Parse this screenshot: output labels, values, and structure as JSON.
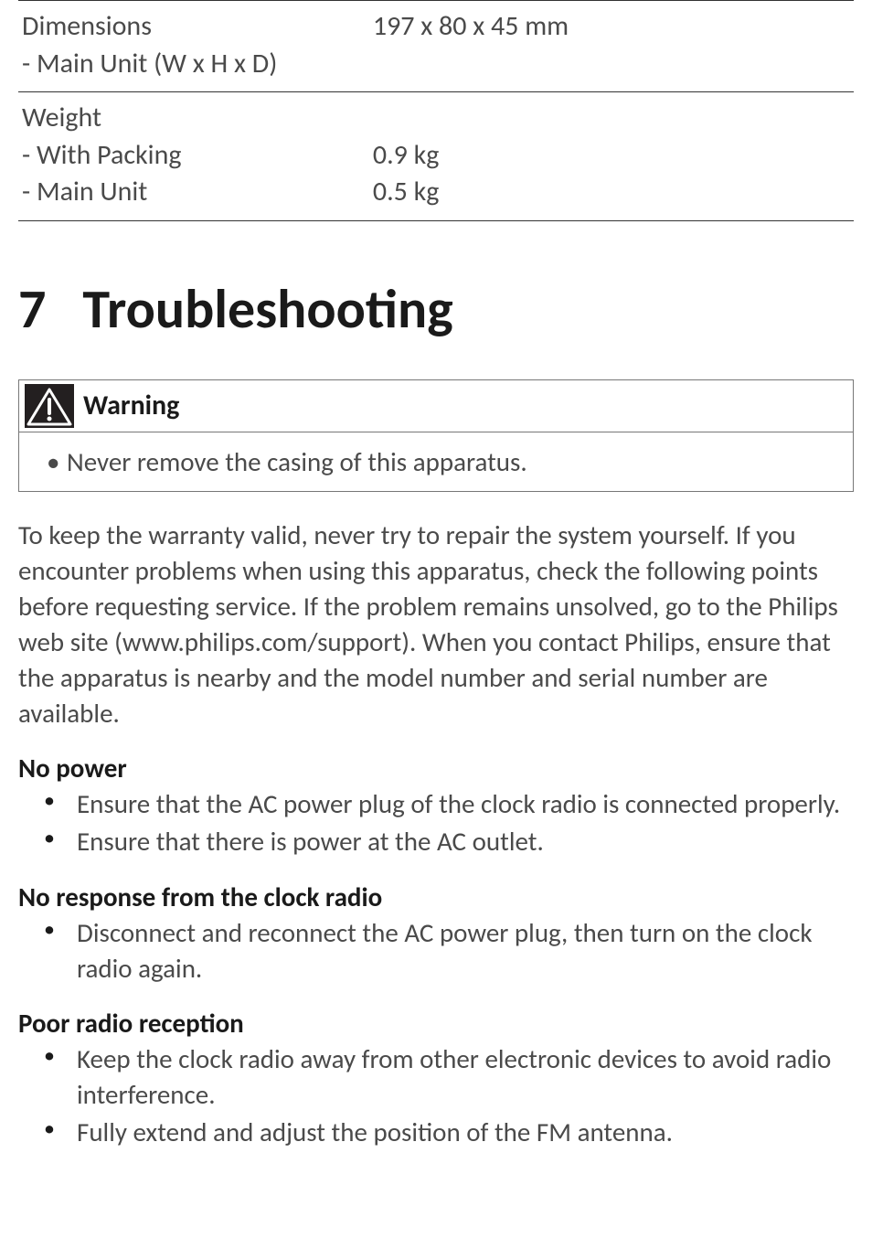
{
  "spec_table": {
    "rows": [
      {
        "label": "Dimensions\n - Main Unit (W x H x D)",
        "value": "197 x 80 x 45 mm"
      },
      {
        "label": "Weight\n - With Packing\n - Main Unit",
        "value": "\n0.9 kg\n0.5 kg"
      }
    ],
    "border_color": "#333333",
    "font_size": 30
  },
  "section": {
    "number": "7",
    "title": "Troubleshooting",
    "font_size": 60
  },
  "warning": {
    "label": "Warning",
    "icon_bg": "#231f20",
    "icon_fg": "#ffffff",
    "text": "Never remove the casing of this apparatus."
  },
  "intro": "To keep the warranty valid, never try to repair the system yourself. If you encounter problems when using this apparatus, check the following points before requesting service. If the problem remains unsolved, go to the Philips web site (www.philips.com/support). When you contact Philips, ensure that the apparatus is nearby and the model number and serial number are available.",
  "sections": [
    {
      "heading": "No power",
      "items": [
        "Ensure that the AC power plug of the clock radio is connected properly.",
        "Ensure that there is power at the AC outlet."
      ]
    },
    {
      "heading": "No response from the clock radio",
      "items": [
        "Disconnect and reconnect the AC power plug, then turn on the clock radio again."
      ]
    },
    {
      "heading": "Poor radio reception",
      "items": [
        "Keep the clock radio away from other electronic devices to avoid radio interference.",
        "Fully extend and adjust the position of the FM antenna."
      ]
    }
  ],
  "colors": {
    "background": "#ffffff",
    "body_text": "#4a4a4a",
    "heading_text": "#1a1a1a"
  }
}
